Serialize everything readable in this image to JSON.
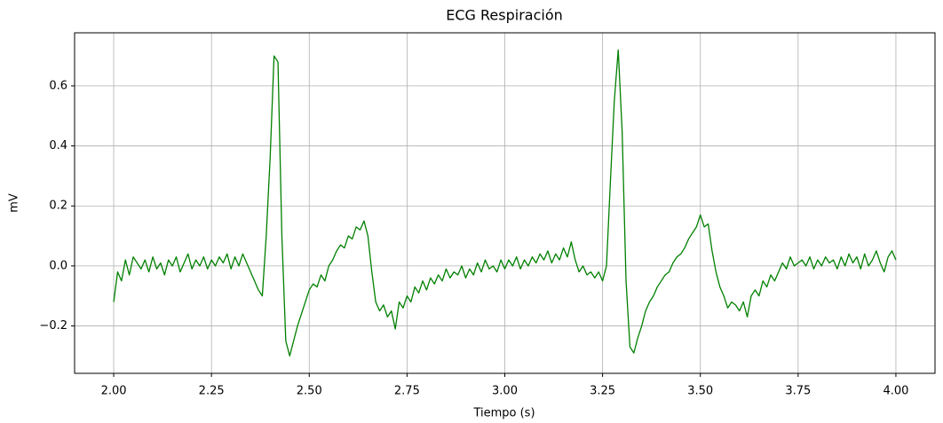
{
  "chart_data": {
    "type": "line",
    "title": "ECG Respiración",
    "xlabel": "Tiempo (s)",
    "ylabel": "mV",
    "xlim": [
      1.9,
      4.1
    ],
    "ylim": [
      -0.358,
      0.777
    ],
    "grid": true,
    "xticks": [
      {
        "value": 2,
        "label": "2.00"
      },
      {
        "value": 2.25,
        "label": "2.25"
      },
      {
        "value": 2.5,
        "label": "2.50"
      },
      {
        "value": 2.75,
        "label": "2.75"
      },
      {
        "value": 3,
        "label": "3.00"
      },
      {
        "value": 3.25,
        "label": "3.25"
      },
      {
        "value": 3.5,
        "label": "3.50"
      },
      {
        "value": 3.75,
        "label": "3.75"
      },
      {
        "value": 4,
        "label": "4.00"
      }
    ],
    "yticks": [
      {
        "value": -0.2,
        "label": "−0.2"
      },
      {
        "value": 0,
        "label": "0.0"
      },
      0.2,
      0.4,
      0.6
    ],
    "x": [
      2,
      2.01,
      2.02,
      2.03,
      2.04,
      2.05,
      2.06,
      2.07,
      2.08,
      2.09,
      2.1,
      2.11,
      2.12,
      2.13,
      2.14,
      2.15,
      2.16,
      2.17,
      2.18,
      2.19,
      2.2,
      2.21,
      2.22,
      2.23,
      2.24,
      2.25,
      2.26,
      2.27,
      2.28,
      2.29,
      2.3,
      2.31,
      2.32,
      2.33,
      2.34,
      2.35,
      2.36,
      2.37,
      2.38,
      2.39,
      2.4,
      2.41,
      2.42,
      2.43,
      2.44,
      2.45,
      2.46,
      2.47,
      2.48,
      2.49,
      2.5,
      2.51,
      2.52,
      2.53,
      2.54,
      2.55,
      2.56,
      2.57,
      2.58,
      2.59,
      2.6,
      2.61,
      2.62,
      2.63,
      2.64,
      2.65,
      2.66,
      2.67,
      2.68,
      2.69,
      2.7,
      2.71,
      2.72,
      2.73,
      2.74,
      2.75,
      2.76,
      2.77,
      2.78,
      2.79,
      2.8,
      2.81,
      2.82,
      2.83,
      2.84,
      2.85,
      2.86,
      2.87,
      2.88,
      2.89,
      2.9,
      2.91,
      2.92,
      2.93,
      2.94,
      2.95,
      2.96,
      2.97,
      2.98,
      2.99,
      3,
      3.01,
      3.02,
      3.03,
      3.04,
      3.05,
      3.06,
      3.07,
      3.08,
      3.09,
      3.1,
      3.11,
      3.12,
      3.13,
      3.14,
      3.15,
      3.16,
      3.17,
      3.18,
      3.19,
      3.2,
      3.21,
      3.22,
      3.23,
      3.24,
      3.25,
      3.26,
      3.27,
      3.28,
      3.29,
      3.3,
      3.31,
      3.32,
      3.33,
      3.34,
      3.35,
      3.36,
      3.37,
      3.38,
      3.39,
      3.4,
      3.41,
      3.42,
      3.43,
      3.44,
      3.45,
      3.46,
      3.47,
      3.48,
      3.49,
      3.5,
      3.51,
      3.52,
      3.53,
      3.54,
      3.55,
      3.56,
      3.57,
      3.58,
      3.59,
      3.6,
      3.61,
      3.62,
      3.63,
      3.64,
      3.65,
      3.66,
      3.67,
      3.68,
      3.69,
      3.7,
      3.71,
      3.72,
      3.73,
      3.74,
      3.75,
      3.76,
      3.77,
      3.78,
      3.79,
      3.8,
      3.81,
      3.82,
      3.83,
      3.84,
      3.85,
      3.86,
      3.87,
      3.88,
      3.89,
      3.9,
      3.91,
      3.92,
      3.93,
      3.94,
      3.95,
      3.96,
      3.97,
      3.98,
      3.99,
      4
    ],
    "series": [
      {
        "color": "#008000",
        "values": [
          -0.12,
          -0.02,
          -0.05,
          0.02,
          -0.03,
          0.03,
          0.01,
          -0.01,
          0.02,
          -0.02,
          0.03,
          -0.01,
          0.01,
          -0.03,
          0.02,
          0,
          0.03,
          -0.02,
          0.01,
          0.04,
          -0.01,
          0.02,
          0,
          0.03,
          -0.01,
          0.02,
          0,
          0.03,
          0.01,
          0.04,
          -0.01,
          0.03,
          0,
          0.04,
          0.01,
          -0.02,
          -0.05,
          -0.08,
          -0.1,
          0.1,
          0.36,
          0.7,
          0.68,
          0.1,
          -0.25,
          -0.3,
          -0.25,
          -0.2,
          -0.16,
          -0.12,
          -0.08,
          -0.06,
          -0.07,
          -0.03,
          -0.05,
          0,
          0.02,
          0.05,
          0.07,
          0.06,
          0.1,
          0.09,
          0.13,
          0.12,
          0.15,
          0.1,
          -0.02,
          -0.12,
          -0.15,
          -0.13,
          -0.17,
          -0.15,
          -0.21,
          -0.12,
          -0.14,
          -0.1,
          -0.12,
          -0.07,
          -0.09,
          -0.05,
          -0.08,
          -0.04,
          -0.06,
          -0.03,
          -0.05,
          -0.01,
          -0.04,
          -0.02,
          -0.03,
          0,
          -0.04,
          -0.01,
          -0.03,
          0.01,
          -0.02,
          0.02,
          -0.01,
          0,
          -0.02,
          0.02,
          -0.01,
          0.02,
          0,
          0.03,
          -0.01,
          0.02,
          0,
          0.03,
          0.01,
          0.04,
          0.02,
          0.05,
          0.01,
          0.04,
          0.02,
          0.06,
          0.03,
          0.08,
          0.02,
          -0.02,
          0,
          -0.03,
          -0.02,
          -0.04,
          -0.02,
          -0.05,
          0,
          0.28,
          0.55,
          0.72,
          0.45,
          -0.05,
          -0.27,
          -0.29,
          -0.24,
          -0.2,
          -0.15,
          -0.12,
          -0.1,
          -0.07,
          -0.05,
          -0.03,
          -0.02,
          0.01,
          0.03,
          0.04,
          0.06,
          0.09,
          0.11,
          0.13,
          0.17,
          0.13,
          0.14,
          0.05,
          -0.02,
          -0.07,
          -0.1,
          -0.14,
          -0.12,
          -0.13,
          -0.15,
          -0.12,
          -0.17,
          -0.1,
          -0.08,
          -0.1,
          -0.05,
          -0.07,
          -0.03,
          -0.05,
          -0.02,
          0.01,
          -0.01,
          0.03,
          0,
          0.01,
          0.02,
          0,
          0.03,
          -0.01,
          0.02,
          0,
          0.03,
          0.01,
          0.02,
          -0.01,
          0.03,
          0,
          0.04,
          0.01,
          0.03,
          -0.01,
          0.04,
          0,
          0.02,
          0.05,
          0.01,
          -0.02,
          0.03,
          0.05,
          0.02
        ]
      }
    ]
  }
}
